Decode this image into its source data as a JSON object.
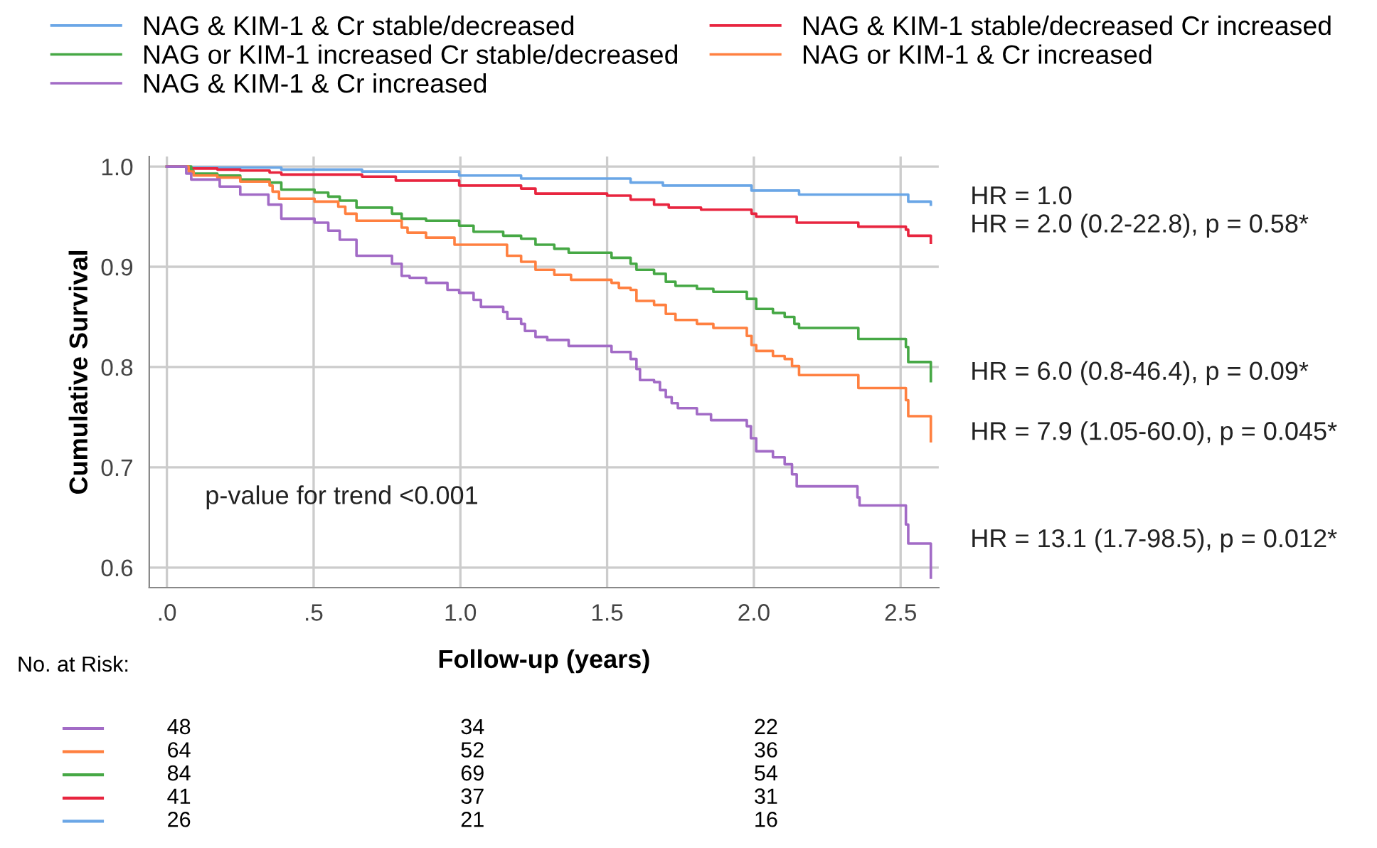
{
  "chart_data": {
    "type": "step",
    "xlabel": "Follow-up (years)",
    "ylabel": "Cumulative Survival",
    "xlim": [
      -0.06,
      2.63
    ],
    "ylim": [
      0.58,
      1.01
    ],
    "xticks": [
      {
        "value": 0,
        "label": ".0"
      },
      {
        "value": 0.5,
        "label": ".5"
      },
      {
        "value": 1.0,
        "label": "1.0"
      },
      {
        "value": 1.5,
        "label": "1.5"
      },
      {
        "value": 2.0,
        "label": "2.0"
      },
      {
        "value": 2.5,
        "label": "2.5"
      }
    ],
    "yticks": [
      0.6,
      0.7,
      0.8,
      0.9,
      {
        "value": 1.0,
        "label": "1.0"
      }
    ],
    "grid": true,
    "legend": "top",
    "marker": "none",
    "line_style": "solid",
    "series": [
      {
        "name": "NAG & KIM-1 & Cr stable/decreased",
        "color": "#6aa6e6",
        "x": [
          0,
          0.066,
          0.39,
          0.665,
          0.996,
          1.207,
          1.58,
          1.69,
          1.992,
          2.154,
          2.526,
          2.603
        ],
        "values": [
          1.0,
          0.999,
          0.997,
          0.995,
          0.991,
          0.988,
          0.984,
          0.981,
          0.976,
          0.972,
          0.965,
          0.962
        ]
      },
      {
        "name": "NAG & KIM-1 stable/decreased Cr increased",
        "color": "#e8253f",
        "x": [
          0,
          0.066,
          0.172,
          0.25,
          0.35,
          0.39,
          0.665,
          0.78,
          0.996,
          1.207,
          1.256,
          1.5,
          1.58,
          1.66,
          1.71,
          1.82,
          1.992,
          2.008,
          2.146,
          2.356,
          2.518,
          2.526,
          2.603
        ],
        "values": [
          1.0,
          0.998,
          0.997,
          0.996,
          0.994,
          0.992,
          0.99,
          0.986,
          0.981,
          0.978,
          0.973,
          0.971,
          0.967,
          0.962,
          0.959,
          0.957,
          0.953,
          0.95,
          0.944,
          0.94,
          0.937,
          0.931,
          0.924
        ]
      },
      {
        "name": "NAG or KIM-1 increased Cr stable/decreased",
        "color": "#46a845",
        "x": [
          0,
          0.083,
          0.09,
          0.172,
          0.25,
          0.35,
          0.39,
          0.503,
          0.55,
          0.589,
          0.646,
          0.767,
          0.8,
          0.883,
          0.996,
          1.045,
          1.146,
          1.207,
          1.256,
          1.32,
          1.369,
          1.515,
          1.58,
          1.6,
          1.66,
          1.7,
          1.733,
          1.806,
          1.862,
          1.976,
          2.008,
          2.065,
          2.105,
          2.138,
          2.154,
          2.356,
          2.518,
          2.526,
          2.603
        ],
        "values": [
          1.0,
          0.996,
          0.993,
          0.991,
          0.987,
          0.984,
          0.977,
          0.974,
          0.97,
          0.966,
          0.959,
          0.953,
          0.948,
          0.946,
          0.941,
          0.935,
          0.931,
          0.928,
          0.922,
          0.918,
          0.914,
          0.909,
          0.903,
          0.897,
          0.893,
          0.885,
          0.881,
          0.878,
          0.875,
          0.868,
          0.858,
          0.854,
          0.85,
          0.843,
          0.839,
          0.828,
          0.82,
          0.805,
          0.786
        ]
      },
      {
        "name": "NAG or KIM-1 & Cr increased",
        "color": "#ff8040",
        "x": [
          0,
          0.074,
          0.091,
          0.172,
          0.25,
          0.35,
          0.36,
          0.382,
          0.503,
          0.584,
          0.608,
          0.646,
          0.8,
          0.82,
          0.883,
          0.98,
          1.159,
          1.207,
          1.256,
          1.32,
          1.377,
          1.515,
          1.54,
          1.58,
          1.6,
          1.66,
          1.7,
          1.733,
          1.806,
          1.862,
          1.976,
          1.992,
          2.008,
          2.065,
          2.105,
          2.13,
          2.154,
          2.356,
          2.518,
          2.526,
          2.603
        ],
        "values": [
          1.0,
          0.995,
          0.991,
          0.989,
          0.985,
          0.981,
          0.975,
          0.968,
          0.965,
          0.96,
          0.953,
          0.946,
          0.939,
          0.934,
          0.929,
          0.922,
          0.911,
          0.905,
          0.897,
          0.892,
          0.887,
          0.884,
          0.879,
          0.877,
          0.866,
          0.862,
          0.853,
          0.847,
          0.843,
          0.839,
          0.831,
          0.822,
          0.816,
          0.811,
          0.808,
          0.801,
          0.792,
          0.779,
          0.767,
          0.751,
          0.726
        ]
      },
      {
        "name": "NAG & KIM-1 & Cr increased",
        "color": "#a26bc6",
        "x": [
          0,
          0.066,
          0.083,
          0.18,
          0.25,
          0.346,
          0.39,
          0.503,
          0.55,
          0.589,
          0.646,
          0.767,
          0.8,
          0.827,
          0.883,
          0.956,
          0.996,
          1.045,
          1.07,
          1.146,
          1.16,
          1.207,
          1.22,
          1.256,
          1.296,
          1.369,
          1.515,
          1.58,
          1.6,
          1.612,
          1.66,
          1.68,
          1.7,
          1.72,
          1.741,
          1.806,
          1.854,
          1.976,
          1.99,
          2.008,
          2.065,
          2.105,
          2.13,
          2.146,
          2.353,
          2.36,
          2.518,
          2.526,
          2.603
        ],
        "values": [
          1.0,
          0.993,
          0.987,
          0.98,
          0.972,
          0.962,
          0.948,
          0.944,
          0.936,
          0.927,
          0.911,
          0.903,
          0.891,
          0.889,
          0.884,
          0.877,
          0.874,
          0.867,
          0.86,
          0.855,
          0.848,
          0.843,
          0.836,
          0.83,
          0.827,
          0.821,
          0.815,
          0.808,
          0.798,
          0.787,
          0.785,
          0.777,
          0.77,
          0.764,
          0.759,
          0.753,
          0.747,
          0.741,
          0.729,
          0.716,
          0.71,
          0.703,
          0.693,
          0.681,
          0.67,
          0.662,
          0.643,
          0.624,
          0.59
        ]
      }
    ],
    "annotations": [
      "p-value for trend <0.001",
      "HR = 1.0",
      "HR = 2.0 (0.2-22.8), p = 0.58*",
      "HR = 6.0 (0.8-46.4), p = 0.09*",
      "HR = 7.9 (1.05-60.0), p = 0.045*",
      "HR = 13.1 (1.7-98.5), p = 0.012*",
      "No. at Risk:",
      "48",
      "34",
      "22",
      "64",
      "52",
      "36",
      "84",
      "69",
      "54",
      "41",
      "37",
      "31",
      "26",
      "21",
      "16"
    ]
  }
}
